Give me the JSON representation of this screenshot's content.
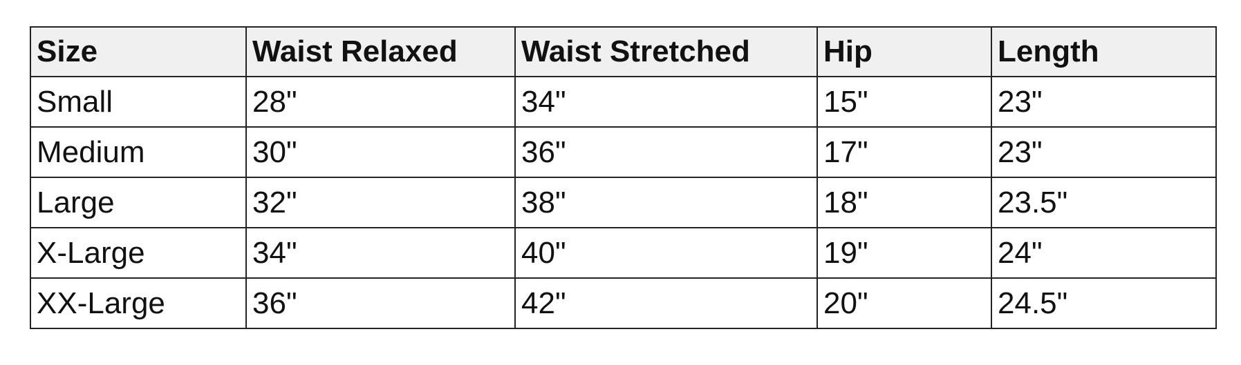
{
  "table": {
    "header": [
      "Size",
      "Waist Relaxed",
      "Waist Stretched",
      "Hip",
      "Length"
    ],
    "rows": [
      [
        "Small",
        "28\"",
        "34\"",
        "15\"",
        "23\""
      ],
      [
        "Medium",
        "30\"",
        "36\"",
        "17\"",
        "23\""
      ],
      [
        "Large",
        "32\"",
        "38\"",
        "18\"",
        "23.5\""
      ],
      [
        "X-Large",
        "34\"",
        "40\"",
        "19\"",
        "24\""
      ],
      [
        "XX-Large",
        "36\"",
        "42\"",
        "20\"",
        "24.5\""
      ]
    ]
  }
}
